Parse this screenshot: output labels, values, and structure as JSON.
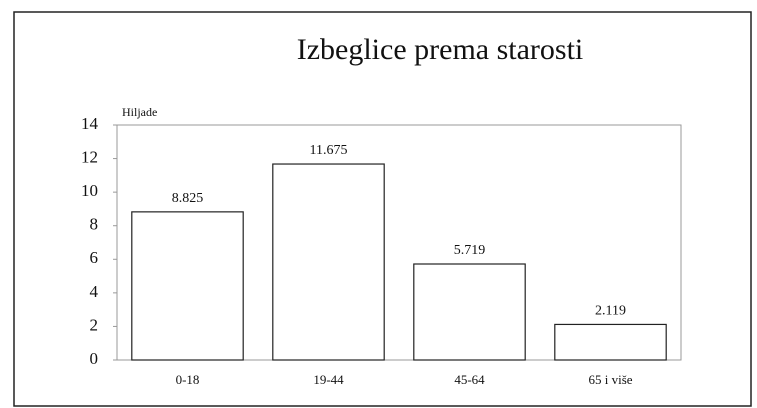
{
  "chart_data": {
    "type": "bar",
    "title": "Izbeglice prema starosti",
    "y_label": "Hiljade",
    "categories": [
      "0-18",
      "19-44",
      "45-64",
      "65 i više"
    ],
    "values": [
      8.825,
      11.675,
      5.719,
      2.119
    ],
    "color": "#ffffff",
    "ylim": [
      0,
      14
    ],
    "yticks": [
      0,
      2,
      4,
      6,
      8,
      10,
      12,
      14
    ],
    "grid": false
  }
}
